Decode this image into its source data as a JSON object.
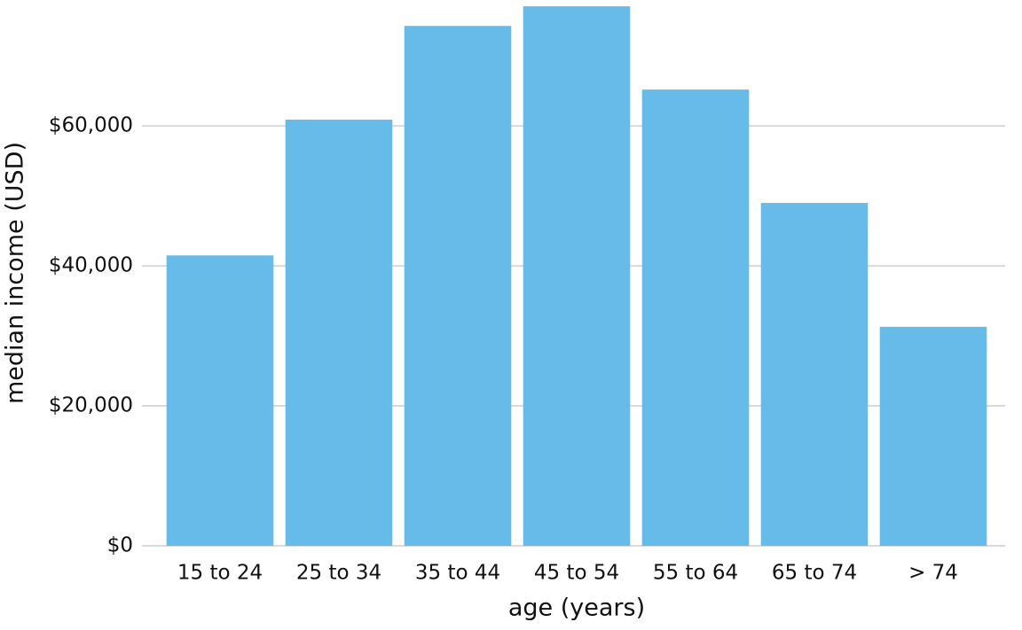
{
  "chart_data": {
    "type": "bar",
    "x_label": "age (years)",
    "y_label": "median income (USD)",
    "categories": [
      "15 to 24",
      "25 to 34",
      "35 to 44",
      "45 to 54",
      "55 to 64",
      "65 to 74",
      "> 74"
    ],
    "values": [
      41500,
      60900,
      74300,
      77100,
      65200,
      49000,
      31300
    ],
    "color": "#67bbe9",
    "ylim": [
      0,
      78000
    ],
    "yticks": [
      {
        "value": 0,
        "label": "$0"
      },
      {
        "value": 20000,
        "label": "$20,000"
      },
      {
        "value": 40000,
        "label": "$40,000"
      },
      {
        "value": 60000,
        "label": "$60,000"
      }
    ],
    "grid": true
  }
}
